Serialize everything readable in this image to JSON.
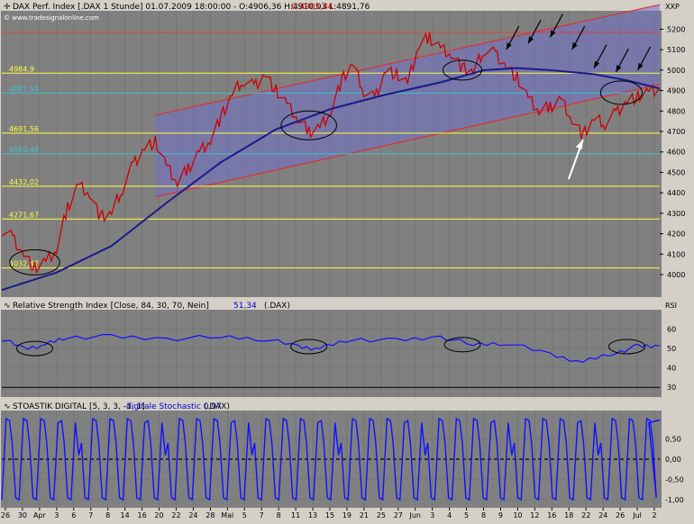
{
  "colors": {
    "panel_bg": "#808080",
    "frame_bg": "#d4d0c8",
    "candle_up": "#000000",
    "candle_down": "#cc0000",
    "moving_average": "#1a1a8c",
    "indicator_line": "#1010ff",
    "channel_fill": "#7070c8",
    "channel_edge": "#e03030",
    "support_line": "#ffff40",
    "cyan_line": "#40c0d0",
    "red_level": "#e04040"
  },
  "main_panel": {
    "header": "DAX Perf. Index [.DAX  1 Stunde] 01.07.2009 18:00:00 - O:4906,36 H:4910,03 L:4891,76",
    "close_value": "C:4905,44",
    "watermark": "© www.tradesignalonline.com",
    "axis_unit": "XXP"
  },
  "rsi_panel": {
    "header": "Relative Strength Index [Close, 84, 30, 70, Nein]",
    "value": "51,34",
    "symbol": "(.DAX)",
    "label": "RSI"
  },
  "stoch_panel": {
    "header": "STOASTIK DIGITAL [5, 3, 3, -1, 1]",
    "value_label": "digitale Stochastic 0,97",
    "symbol": "(.DAX)"
  },
  "chart_data": [
    {
      "type": "line",
      "title": "DAX Perf. Index [.DAX 1 Stunde]",
      "ylim": [
        3890,
        5290
      ],
      "y_ticks": [
        4000,
        4100,
        4200,
        4300,
        4400,
        4500,
        4600,
        4700,
        4800,
        4900,
        5000,
        5100,
        5200
      ],
      "y_tick_labels": [
        "4000",
        "4100",
        "4200",
        "4300",
        "4400",
        "4500",
        "4600",
        "4700",
        "4800",
        "4900",
        "5000",
        "5100",
        "5200"
      ],
      "levels": [
        {
          "label": "4984,9",
          "value": 4984.9,
          "color": "#ffff40"
        },
        {
          "label": "4887,58",
          "value": 4887.58,
          "color": "#40c0d0"
        },
        {
          "label": "4691,56",
          "value": 4691.56,
          "color": "#ffff40"
        },
        {
          "label": "4590,48",
          "value": 4590.48,
          "color": "#40c0d0"
        },
        {
          "label": "4432,02",
          "value": 4432.02,
          "color": "#ffff40"
        },
        {
          "label": "4271,67",
          "value": 4271.67,
          "color": "#ffff40"
        },
        {
          "label": "4032,47",
          "value": 4032.47,
          "color": "#ffff40"
        }
      ],
      "resistance_level": 5185,
      "x_axis_labels": [
        "26",
        "30",
        "Apr",
        "3",
        "6",
        "7",
        "8",
        "14",
        "16",
        "20",
        "22",
        "24",
        "28",
        "Mai",
        "5",
        "7",
        "8",
        "11",
        "13",
        "15",
        "19",
        "21",
        "25",
        "27",
        "Jun",
        "3",
        "4",
        "5",
        "8",
        "9",
        "10",
        "12",
        "16",
        "18",
        "22",
        "24",
        "26",
        "Jul",
        "2"
      ],
      "price_path": [
        {
          "x": 0,
          "y": 4220
        },
        {
          "x": 2,
          "y": 4180
        },
        {
          "x": 4,
          "y": 4100
        },
        {
          "x": 6,
          "y": 4030
        },
        {
          "x": 8,
          "y": 4060
        },
        {
          "x": 10,
          "y": 4120
        },
        {
          "x": 12,
          "y": 4330
        },
        {
          "x": 14,
          "y": 4440
        },
        {
          "x": 16,
          "y": 4400
        },
        {
          "x": 18,
          "y": 4280
        },
        {
          "x": 20,
          "y": 4300
        },
        {
          "x": 22,
          "y": 4420
        },
        {
          "x": 24,
          "y": 4540
        },
        {
          "x": 26,
          "y": 4620
        },
        {
          "x": 28,
          "y": 4650
        },
        {
          "x": 30,
          "y": 4530
        },
        {
          "x": 32,
          "y": 4450
        },
        {
          "x": 34,
          "y": 4520
        },
        {
          "x": 36,
          "y": 4600
        },
        {
          "x": 38,
          "y": 4660
        },
        {
          "x": 40,
          "y": 4770
        },
        {
          "x": 42,
          "y": 4880
        },
        {
          "x": 44,
          "y": 4950
        },
        {
          "x": 46,
          "y": 4920
        },
        {
          "x": 48,
          "y": 4980
        },
        {
          "x": 50,
          "y": 4900
        },
        {
          "x": 52,
          "y": 4830
        },
        {
          "x": 54,
          "y": 4760
        },
        {
          "x": 56,
          "y": 4700
        },
        {
          "x": 58,
          "y": 4720
        },
        {
          "x": 60,
          "y": 4800
        },
        {
          "x": 62,
          "y": 4950
        },
        {
          "x": 64,
          "y": 5030
        },
        {
          "x": 66,
          "y": 4900
        },
        {
          "x": 68,
          "y": 4860
        },
        {
          "x": 70,
          "y": 5000
        },
        {
          "x": 72,
          "y": 4980
        },
        {
          "x": 74,
          "y": 4930
        },
        {
          "x": 76,
          "y": 5120
        },
        {
          "x": 78,
          "y": 5160
        },
        {
          "x": 80,
          "y": 5110
        },
        {
          "x": 82,
          "y": 5080
        },
        {
          "x": 84,
          "y": 5010
        },
        {
          "x": 86,
          "y": 4990
        },
        {
          "x": 88,
          "y": 5100
        },
        {
          "x": 90,
          "y": 5080
        },
        {
          "x": 92,
          "y": 5020
        },
        {
          "x": 94,
          "y": 4960
        },
        {
          "x": 96,
          "y": 4860
        },
        {
          "x": 98,
          "y": 4800
        },
        {
          "x": 100,
          "y": 4820
        },
        {
          "x": 102,
          "y": 4860
        },
        {
          "x": 104,
          "y": 4760
        },
        {
          "x": 106,
          "y": 4680
        },
        {
          "x": 108,
          "y": 4760
        },
        {
          "x": 110,
          "y": 4740
        },
        {
          "x": 112,
          "y": 4790
        },
        {
          "x": 114,
          "y": 4850
        },
        {
          "x": 116,
          "y": 4870
        },
        {
          "x": 118,
          "y": 4890
        },
        {
          "x": 120,
          "y": 4905
        }
      ],
      "moving_average_path": [
        {
          "x": 0,
          "y": 3925
        },
        {
          "x": 10,
          "y": 4010
        },
        {
          "x": 20,
          "y": 4140
        },
        {
          "x": 30,
          "y": 4350
        },
        {
          "x": 40,
          "y": 4550
        },
        {
          "x": 50,
          "y": 4710
        },
        {
          "x": 60,
          "y": 4810
        },
        {
          "x": 70,
          "y": 4880
        },
        {
          "x": 80,
          "y": 4940
        },
        {
          "x": 88,
          "y": 5000
        },
        {
          "x": 94,
          "y": 5010
        },
        {
          "x": 100,
          "y": 5000
        },
        {
          "x": 108,
          "y": 4980
        },
        {
          "x": 114,
          "y": 4950
        },
        {
          "x": 120,
          "y": 4910
        }
      ]
    },
    {
      "type": "line",
      "title": "Relative Strength Index [Close, 84, 30, 70, Nein]",
      "ylabel": "RSI",
      "ylim": [
        25,
        70
      ],
      "y_ticks": [
        30,
        40,
        50,
        60
      ],
      "y_tick_labels": [
        "30",
        "40",
        "50",
        "60"
      ],
      "values": [
        {
          "x": 0,
          "y": 55
        },
        {
          "x": 4,
          "y": 50
        },
        {
          "x": 8,
          "y": 52
        },
        {
          "x": 12,
          "y": 56
        },
        {
          "x": 20,
          "y": 56
        },
        {
          "x": 30,
          "y": 55
        },
        {
          "x": 40,
          "y": 56
        },
        {
          "x": 48,
          "y": 55
        },
        {
          "x": 54,
          "y": 51
        },
        {
          "x": 58,
          "y": 50
        },
        {
          "x": 64,
          "y": 55
        },
        {
          "x": 72,
          "y": 54
        },
        {
          "x": 80,
          "y": 56
        },
        {
          "x": 86,
          "y": 52
        },
        {
          "x": 92,
          "y": 53
        },
        {
          "x": 100,
          "y": 47
        },
        {
          "x": 106,
          "y": 43
        },
        {
          "x": 112,
          "y": 48
        },
        {
          "x": 116,
          "y": 51
        },
        {
          "x": 120,
          "y": 51.34
        }
      ]
    },
    {
      "type": "line",
      "title": "STOASTIK DIGITAL [5, 3, 3, -1, 1]",
      "ylim": [
        -1.2,
        1.2
      ],
      "y_ticks": [
        0.5,
        0,
        -0.5,
        -1
      ],
      "y_tick_labels": [
        "0,50",
        "0,00",
        "-0,50",
        "-1,00"
      ],
      "oscillation_cycles": 38,
      "last_value": 0.97
    }
  ]
}
